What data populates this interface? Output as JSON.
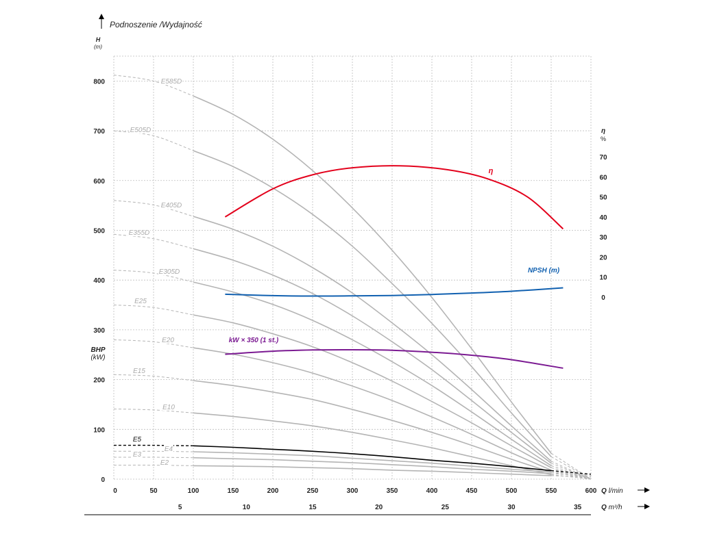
{
  "chart_data": {
    "type": "line",
    "title": "Podnoszenie /Wydajność",
    "y_left": {
      "label": "H",
      "unit": "(m)",
      "ticks": [
        0,
        100,
        200,
        300,
        400,
        500,
        600,
        700,
        800
      ],
      "range": [
        0,
        850
      ],
      "secondary_label": "BHP",
      "secondary_unit": "(kW)"
    },
    "y_right": {
      "label": "η",
      "unit": "%",
      "ticks": [
        0,
        10,
        20,
        30,
        40,
        50,
        60,
        70
      ]
    },
    "x_top": {
      "label": "Q",
      "unit": "l/min",
      "ticks": [
        0,
        50,
        100,
        150,
        200,
        250,
        300,
        350,
        400,
        450,
        500,
        550,
        600
      ],
      "range": [
        0,
        600
      ]
    },
    "x_bottom": {
      "label": "Q",
      "unit": "m³/h",
      "ticks": [
        5,
        10,
        15,
        20,
        25,
        30,
        35
      ]
    },
    "grid": true,
    "head_curves": [
      {
        "name": "E585D",
        "values": [
          [
            0,
            812
          ],
          [
            50,
            800
          ],
          [
            100,
            770
          ],
          [
            150,
            733
          ],
          [
            200,
            683
          ],
          [
            250,
            620
          ],
          [
            300,
            545
          ],
          [
            350,
            460
          ],
          [
            400,
            365
          ],
          [
            450,
            262
          ],
          [
            500,
            155
          ],
          [
            550,
            52
          ],
          [
            600,
            0
          ]
        ]
      },
      {
        "name": "E505D",
        "values": [
          [
            0,
            700
          ],
          [
            50,
            690
          ],
          [
            100,
            660
          ],
          [
            150,
            628
          ],
          [
            200,
            585
          ],
          [
            250,
            532
          ],
          [
            300,
            468
          ],
          [
            350,
            393
          ],
          [
            400,
            313
          ],
          [
            450,
            226
          ],
          [
            500,
            133
          ],
          [
            550,
            45
          ],
          [
            600,
            0
          ]
        ]
      },
      {
        "name": "E405D",
        "values": [
          [
            0,
            560
          ],
          [
            50,
            551
          ],
          [
            100,
            528
          ],
          [
            150,
            502
          ],
          [
            200,
            468
          ],
          [
            250,
            425
          ],
          [
            300,
            374
          ],
          [
            350,
            314
          ],
          [
            400,
            250
          ],
          [
            450,
            180
          ],
          [
            500,
            107
          ],
          [
            550,
            36
          ],
          [
            600,
            0
          ]
        ]
      },
      {
        "name": "E355D",
        "values": [
          [
            0,
            492
          ],
          [
            50,
            483
          ],
          [
            100,
            463
          ],
          [
            150,
            440
          ],
          [
            200,
            410
          ],
          [
            250,
            373
          ],
          [
            300,
            328
          ],
          [
            350,
            276
          ],
          [
            400,
            220
          ],
          [
            450,
            158
          ],
          [
            500,
            94
          ],
          [
            550,
            32
          ],
          [
            600,
            0
          ]
        ]
      },
      {
        "name": "E305D",
        "values": [
          [
            0,
            420
          ],
          [
            50,
            414
          ],
          [
            100,
            396
          ],
          [
            150,
            376
          ],
          [
            200,
            351
          ],
          [
            250,
            319
          ],
          [
            300,
            280
          ],
          [
            350,
            236
          ],
          [
            400,
            188
          ],
          [
            450,
            135
          ],
          [
            500,
            80
          ],
          [
            550,
            27
          ],
          [
            600,
            0
          ]
        ]
      },
      {
        "name": "E25",
        "values": [
          [
            0,
            350
          ],
          [
            50,
            345
          ],
          [
            100,
            330
          ],
          [
            150,
            314
          ],
          [
            200,
            292
          ],
          [
            250,
            266
          ],
          [
            300,
            234
          ],
          [
            350,
            197
          ],
          [
            400,
            156
          ],
          [
            450,
            113
          ],
          [
            500,
            67
          ],
          [
            550,
            23
          ],
          [
            600,
            0
          ]
        ]
      },
      {
        "name": "E20",
        "values": [
          [
            0,
            280
          ],
          [
            50,
            276
          ],
          [
            100,
            264
          ],
          [
            150,
            251
          ],
          [
            200,
            234
          ],
          [
            250,
            213
          ],
          [
            300,
            187
          ],
          [
            350,
            158
          ],
          [
            400,
            125
          ],
          [
            450,
            90
          ],
          [
            500,
            53
          ],
          [
            550,
            18
          ],
          [
            600,
            0
          ]
        ]
      },
      {
        "name": "E15",
        "values": [
          [
            0,
            210
          ],
          [
            50,
            207
          ],
          [
            100,
            198
          ],
          [
            150,
            188
          ],
          [
            200,
            175
          ],
          [
            250,
            160
          ],
          [
            300,
            140
          ],
          [
            350,
            118
          ],
          [
            400,
            94
          ],
          [
            450,
            68
          ],
          [
            500,
            40
          ],
          [
            550,
            14
          ],
          [
            600,
            0
          ]
        ]
      },
      {
        "name": "E10",
        "values": [
          [
            0,
            141
          ],
          [
            50,
            139
          ],
          [
            100,
            133
          ],
          [
            150,
            126
          ],
          [
            200,
            117
          ],
          [
            250,
            107
          ],
          [
            300,
            94
          ],
          [
            350,
            79
          ],
          [
            400,
            63
          ],
          [
            450,
            45
          ],
          [
            500,
            27
          ],
          [
            550,
            9
          ],
          [
            600,
            0
          ]
        ]
      },
      {
        "name": "E5",
        "highlight": true,
        "values": [
          [
            0,
            68
          ],
          [
            50,
            68
          ],
          [
            100,
            67
          ],
          [
            150,
            64
          ],
          [
            200,
            60
          ],
          [
            250,
            56
          ],
          [
            300,
            51
          ],
          [
            350,
            45
          ],
          [
            400,
            38
          ],
          [
            450,
            32
          ],
          [
            500,
            25
          ],
          [
            550,
            17
          ],
          [
            600,
            10
          ]
        ]
      },
      {
        "name": "E4",
        "values": [
          [
            0,
            56
          ],
          [
            50,
            56
          ],
          [
            100,
            55
          ],
          [
            150,
            53
          ],
          [
            200,
            50
          ],
          [
            250,
            47
          ],
          [
            300,
            42
          ],
          [
            350,
            37
          ],
          [
            400,
            32
          ],
          [
            450,
            26
          ],
          [
            500,
            20
          ],
          [
            550,
            14
          ],
          [
            600,
            8
          ]
        ]
      },
      {
        "name": "E3",
        "values": [
          [
            0,
            44
          ],
          [
            50,
            44
          ],
          [
            100,
            43
          ],
          [
            150,
            41
          ],
          [
            200,
            39
          ],
          [
            250,
            36
          ],
          [
            300,
            33
          ],
          [
            350,
            29
          ],
          [
            400,
            25
          ],
          [
            450,
            20
          ],
          [
            500,
            16
          ],
          [
            550,
            11
          ],
          [
            600,
            6
          ]
        ]
      },
      {
        "name": "E2",
        "values": [
          [
            0,
            28
          ],
          [
            50,
            28
          ],
          [
            100,
            27
          ],
          [
            150,
            26
          ],
          [
            200,
            25
          ],
          [
            250,
            23
          ],
          [
            300,
            21
          ],
          [
            350,
            18
          ],
          [
            400,
            16
          ],
          [
            450,
            13
          ],
          [
            500,
            10
          ],
          [
            550,
            7
          ],
          [
            600,
            4
          ]
        ]
      }
    ],
    "efficiency": {
      "name": "η",
      "color": "#e3001b",
      "values": [
        [
          140,
          40
        ],
        [
          200,
          54
        ],
        [
          250,
          61
        ],
        [
          300,
          64.5
        ],
        [
          360,
          65.5
        ],
        [
          420,
          63.5
        ],
        [
          470,
          59
        ],
        [
          520,
          50
        ],
        [
          565,
          34
        ]
      ]
    },
    "npsh": {
      "name": "NPSH (m)",
      "color": "#1060b0",
      "values": [
        [
          140,
          1.4
        ],
        [
          200,
          0.7
        ],
        [
          250,
          0.5
        ],
        [
          300,
          0.6
        ],
        [
          350,
          0.8
        ],
        [
          400,
          1.3
        ],
        [
          450,
          2.0
        ],
        [
          500,
          2.9
        ],
        [
          565,
          4.6
        ]
      ]
    },
    "power": {
      "name": "kW × 350 (1 st.)",
      "color": "#7b1a92",
      "values": [
        [
          140,
          251
        ],
        [
          200,
          257
        ],
        [
          250,
          259.5
        ],
        [
          300,
          260
        ],
        [
          350,
          259
        ],
        [
          400,
          255
        ],
        [
          450,
          249
        ],
        [
          500,
          240
        ],
        [
          565,
          223
        ]
      ]
    }
  }
}
